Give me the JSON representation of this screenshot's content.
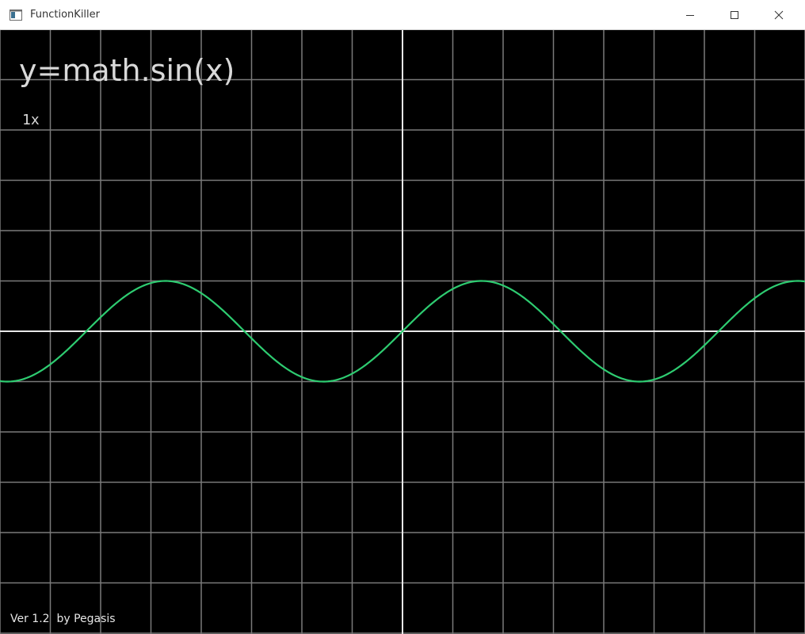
{
  "window": {
    "title": "FunctionKiller"
  },
  "overlay": {
    "function_text": "y=math.sin(x)",
    "zoom_text": "1x",
    "version_text": "Ver 1.2  by Pegasis"
  },
  "icons": {
    "app": "app-window-icon",
    "minimize": "minimize-icon",
    "maximize": "maximize-icon",
    "close": "close-icon"
  },
  "colors": {
    "background": "#000000",
    "grid": "#7a7a7a",
    "axis": "#e8e8e8",
    "curve": "#2ecc71",
    "text": "#d9d9d9"
  }
}
